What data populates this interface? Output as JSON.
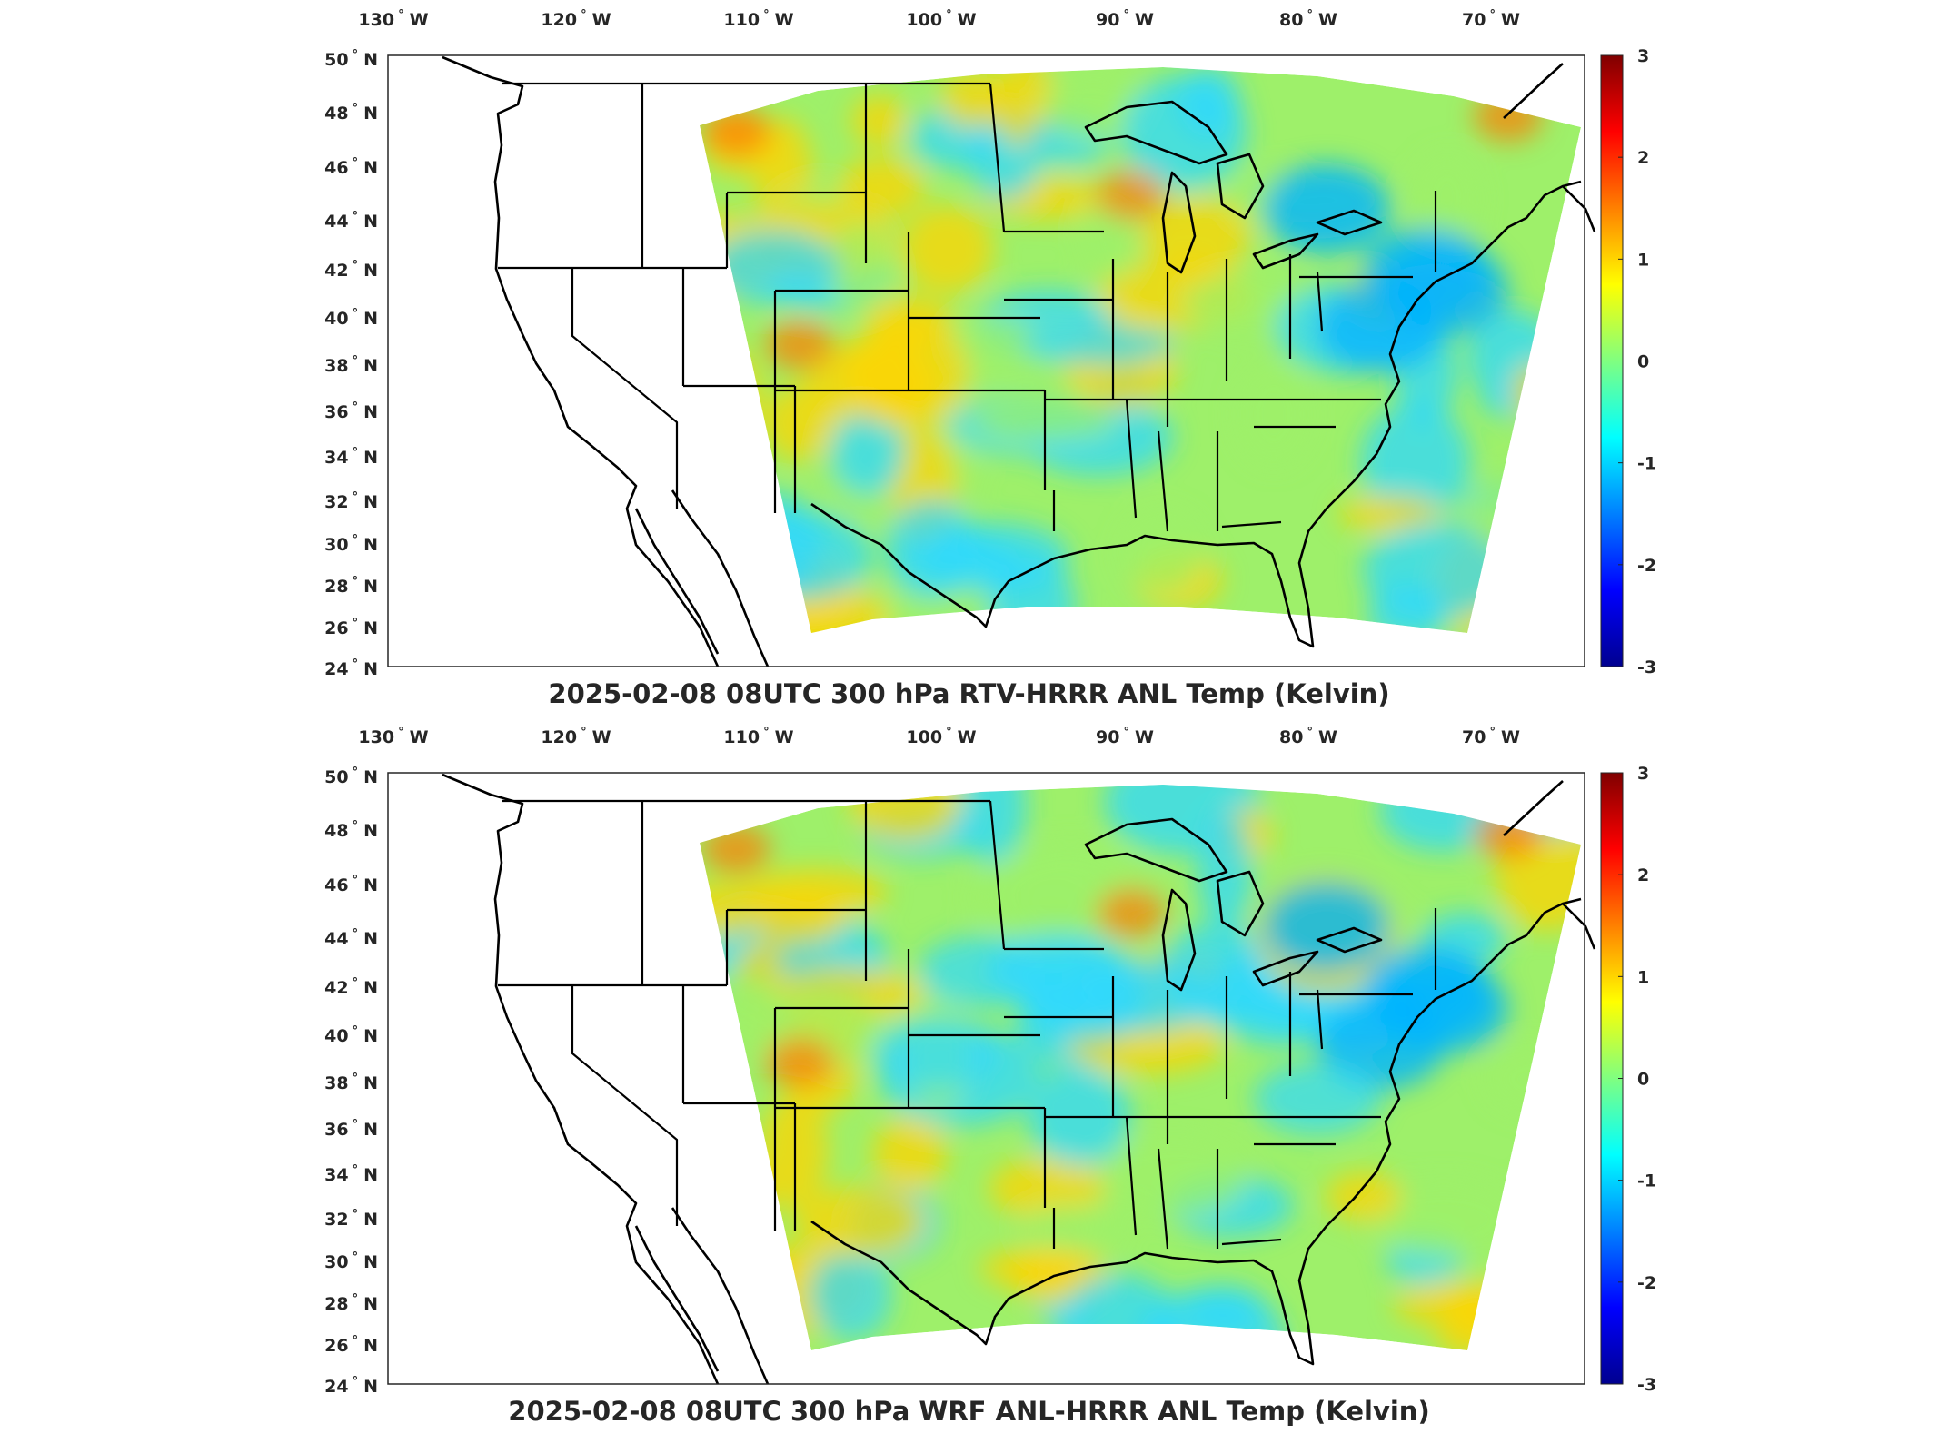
{
  "maps": [
    {
      "id": "rtv",
      "title": "2025-02-08 08UTC 300 hPa RTV-HRRR ANL Temp (Kelvin)",
      "field_tone": "mixed",
      "warm_spots": [
        "Pacific Northwest",
        "Wisconsin",
        "Four Corners",
        "Maine"
      ],
      "cool_spots": [
        "New England coast",
        "Mid-Atlantic",
        "Utah",
        "Northern Plains"
      ]
    },
    {
      "id": "wrf",
      "title": "2025-02-08 08UTC 300 hPa WRF ANL-HRRR ANL Temp (Kelvin)",
      "field_tone": "slightly warmer west, cooler east",
      "warm_spots": [
        "Pacific Northwest",
        "Wisconsin",
        "Montana",
        "Maine"
      ],
      "cool_spots": [
        "New England coast",
        "Mid-Atlantic",
        "Kentucky",
        "Nebraska"
      ]
    }
  ],
  "longitude_ticks": [
    {
      "value": -130,
      "text": "130",
      "hemi": "W"
    },
    {
      "value": -120,
      "text": "120",
      "hemi": "W"
    },
    {
      "value": -110,
      "text": "110",
      "hemi": "W"
    },
    {
      "value": -100,
      "text": "100",
      "hemi": "W"
    },
    {
      "value": -90,
      "text": "90",
      "hemi": "W"
    },
    {
      "value": -80,
      "text": "80",
      "hemi": "W"
    },
    {
      "value": -70,
      "text": "70",
      "hemi": "W"
    }
  ],
  "latitude_ticks": [
    {
      "value": 50,
      "text": "50",
      "hemi": "N"
    },
    {
      "value": 48,
      "text": "48",
      "hemi": "N"
    },
    {
      "value": 46,
      "text": "46",
      "hemi": "N"
    },
    {
      "value": 44,
      "text": "44",
      "hemi": "N"
    },
    {
      "value": 42,
      "text": "42",
      "hemi": "N"
    },
    {
      "value": 40,
      "text": "40",
      "hemi": "N"
    },
    {
      "value": 38,
      "text": "38",
      "hemi": "N"
    },
    {
      "value": 36,
      "text": "36",
      "hemi": "N"
    },
    {
      "value": 34,
      "text": "34",
      "hemi": "N"
    },
    {
      "value": 32,
      "text": "32",
      "hemi": "N"
    },
    {
      "value": 30,
      "text": "30",
      "hemi": "N"
    },
    {
      "value": 28,
      "text": "28",
      "hemi": "N"
    },
    {
      "value": 26,
      "text": "26",
      "hemi": "N"
    },
    {
      "value": 24,
      "text": "24",
      "hemi": "N"
    }
  ],
  "colorbar": {
    "min": -3,
    "max": 3,
    "ticks": [
      "3",
      "2",
      "1",
      "0",
      "-1",
      "-2",
      "-3"
    ],
    "colormap": "jet",
    "colors": [
      "#00008f",
      "#0000ff",
      "#0080ff",
      "#00ffff",
      "#80ff80",
      "#ffff00",
      "#ff8000",
      "#ff0000",
      "#800000"
    ]
  },
  "field_colors": {
    "base": "#9ef06a",
    "warm": "#ffd400",
    "hot": "#ff7a00",
    "cool": "#2fd8ff",
    "cold": "#00b4ff"
  }
}
